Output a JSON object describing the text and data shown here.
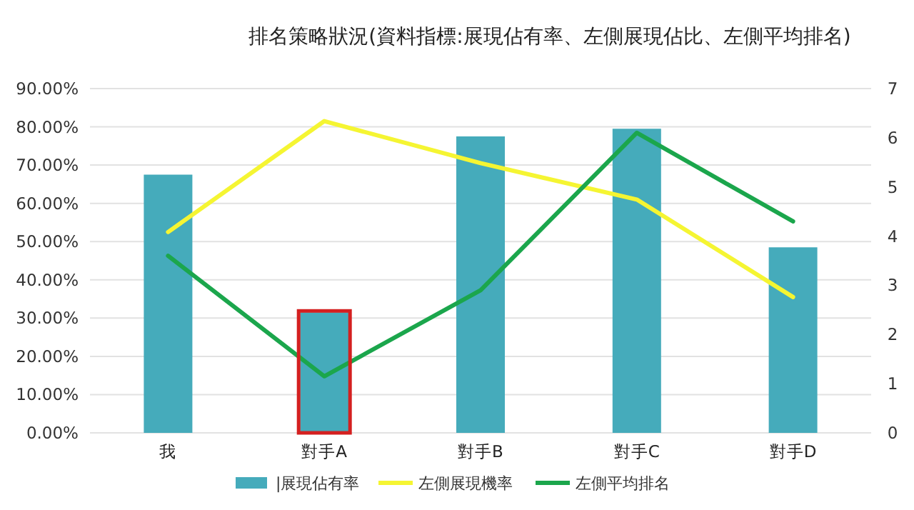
{
  "chart_data": {
    "type": "bar",
    "title": "排名策略狀況(資料指標:展現佔有率、左側展現佔比、左側平均排名)",
    "categories": [
      "我",
      "對手A",
      "對手B",
      "對手C",
      "對手D"
    ],
    "series": [
      {
        "name": "|展現佔有率",
        "color": "#45abbb",
        "values": [
          67.5,
          31.5,
          77.5,
          79.5,
          48.5
        ]
      },
      {
        "name": "左側展現機率",
        "type": "line",
        "color": "#f5f532",
        "values": [
          52.5,
          81.5,
          70.5,
          61,
          35.5
        ]
      },
      {
        "name": "左側平均排名",
        "type": "line",
        "color": "#1ba64c",
        "axis": "y2",
        "values": [
          3.6,
          1.15,
          2.9,
          6.1,
          4.3
        ]
      }
    ],
    "ylim": [
      0,
      90
    ],
    "yticks": [
      {
        "value": 0,
        "label": "0.00%"
      },
      {
        "value": 10,
        "label": "10.00%"
      },
      {
        "value": 20,
        "label": "20.00%"
      },
      {
        "value": 30,
        "label": "30.00%"
      },
      {
        "value": 40,
        "label": "40.00%"
      },
      {
        "value": 50,
        "label": "50.00%"
      },
      {
        "value": 60,
        "label": "60.00%"
      },
      {
        "value": 70,
        "label": "70.00%"
      },
      {
        "value": 80,
        "label": "80.00%"
      },
      {
        "value": 90,
        "label": "90.00%"
      }
    ],
    "y2lim": [
      0,
      7
    ],
    "y2ticks": [
      0,
      1,
      2,
      3,
      4,
      5,
      6,
      7
    ],
    "grid": "y",
    "legend": "bottom",
    "marker": "none"
  }
}
